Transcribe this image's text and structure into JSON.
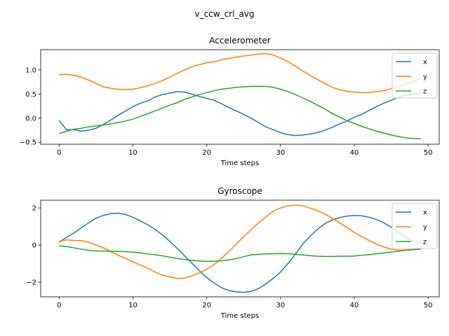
{
  "figure": {
    "suptitle": "v_ccw_crl_avg"
  },
  "chart_data": [
    {
      "type": "line",
      "title": "Accelerometer",
      "xlabel": "Time steps",
      "ylabel": "",
      "xlim": [
        -2.5,
        51.5
      ],
      "ylim": [
        -0.54,
        1.42
      ],
      "xticks": [
        0,
        10,
        20,
        30,
        40,
        50
      ],
      "yticks": [
        -0.5,
        0.0,
        0.5,
        1.0
      ],
      "ytick_labels": [
        "−0.5",
        "0.0",
        "0.5",
        "1.0"
      ],
      "legend_position": "upper right",
      "x": [
        0,
        1,
        2,
        3,
        4,
        5,
        6,
        7,
        8,
        9,
        10,
        11,
        12,
        13,
        14,
        15,
        16,
        17,
        18,
        19,
        20,
        21,
        22,
        23,
        24,
        25,
        26,
        27,
        28,
        29,
        30,
        31,
        32,
        33,
        34,
        35,
        36,
        37,
        38,
        39,
        40,
        41,
        42,
        43,
        44,
        45,
        46,
        47,
        48,
        49
      ],
      "series": [
        {
          "name": "x",
          "color": "#1f77b4",
          "values": [
            -0.05,
            -0.24,
            -0.24,
            -0.27,
            -0.25,
            -0.21,
            -0.13,
            -0.04,
            0.06,
            0.15,
            0.24,
            0.31,
            0.36,
            0.44,
            0.49,
            0.52,
            0.55,
            0.54,
            0.5,
            0.45,
            0.41,
            0.37,
            0.3,
            0.22,
            0.15,
            0.08,
            0.0,
            -0.09,
            -0.18,
            -0.24,
            -0.3,
            -0.34,
            -0.36,
            -0.35,
            -0.33,
            -0.3,
            -0.25,
            -0.19,
            -0.12,
            -0.06,
            0.02,
            0.08,
            0.16,
            0.24,
            0.31,
            0.37,
            0.44,
            0.48,
            0.5,
            0.52
          ]
        },
        {
          "name": "y",
          "color": "#ff7f0e",
          "values": [
            0.9,
            0.91,
            0.89,
            0.85,
            0.79,
            0.72,
            0.65,
            0.62,
            0.6,
            0.59,
            0.6,
            0.63,
            0.67,
            0.72,
            0.78,
            0.85,
            0.93,
            1.0,
            1.07,
            1.11,
            1.15,
            1.17,
            1.21,
            1.24,
            1.27,
            1.29,
            1.31,
            1.33,
            1.34,
            1.31,
            1.25,
            1.17,
            1.08,
            0.98,
            0.89,
            0.8,
            0.72,
            0.64,
            0.59,
            0.56,
            0.54,
            0.53,
            0.53,
            0.55,
            0.57,
            0.61,
            0.65,
            0.71,
            0.77,
            0.82
          ]
        },
        {
          "name": "z",
          "color": "#2ca02c",
          "values": [
            -0.32,
            -0.27,
            -0.23,
            -0.21,
            -0.18,
            -0.16,
            -0.14,
            -0.12,
            -0.09,
            -0.06,
            -0.02,
            0.04,
            0.09,
            0.15,
            0.21,
            0.27,
            0.32,
            0.39,
            0.44,
            0.49,
            0.53,
            0.57,
            0.6,
            0.62,
            0.64,
            0.65,
            0.66,
            0.66,
            0.66,
            0.64,
            0.6,
            0.55,
            0.49,
            0.42,
            0.35,
            0.27,
            0.19,
            0.1,
            0.02,
            -0.05,
            -0.11,
            -0.17,
            -0.22,
            -0.27,
            -0.31,
            -0.35,
            -0.38,
            -0.41,
            -0.42,
            -0.43
          ]
        }
      ]
    },
    {
      "type": "line",
      "title": "Gyroscope",
      "xlabel": "Time steps",
      "ylabel": "",
      "xlim": [
        -2.5,
        51.5
      ],
      "ylim": [
        -2.79,
        2.42
      ],
      "xticks": [
        0,
        10,
        20,
        30,
        40,
        50
      ],
      "yticks": [
        -2,
        0,
        2
      ],
      "ytick_labels": [
        "−2",
        "0",
        "2"
      ],
      "legend_position": "upper right",
      "x": [
        0,
        1,
        2,
        3,
        4,
        5,
        6,
        7,
        8,
        9,
        10,
        11,
        12,
        13,
        14,
        15,
        16,
        17,
        18,
        19,
        20,
        21,
        22,
        23,
        24,
        25,
        26,
        27,
        28,
        29,
        30,
        31,
        32,
        33,
        34,
        35,
        36,
        37,
        38,
        39,
        40,
        41,
        42,
        43,
        44,
        45,
        46,
        47,
        48,
        49
      ],
      "series": [
        {
          "name": "x",
          "color": "#1f77b4",
          "values": [
            0.15,
            0.42,
            0.65,
            0.93,
            1.2,
            1.45,
            1.6,
            1.7,
            1.72,
            1.65,
            1.5,
            1.3,
            1.1,
            0.85,
            0.55,
            0.2,
            -0.18,
            -0.58,
            -0.98,
            -1.38,
            -1.75,
            -2.05,
            -2.3,
            -2.45,
            -2.52,
            -2.55,
            -2.5,
            -2.35,
            -2.1,
            -1.8,
            -1.45,
            -1.0,
            -0.5,
            0.05,
            0.48,
            0.85,
            1.15,
            1.35,
            1.48,
            1.56,
            1.6,
            1.58,
            1.5,
            1.38,
            1.2,
            0.96,
            0.7,
            0.42,
            0.2,
            0.1
          ]
        },
        {
          "name": "y",
          "color": "#ff7f0e",
          "values": [
            0.2,
            0.28,
            0.25,
            0.24,
            0.15,
            0.0,
            -0.15,
            -0.35,
            -0.55,
            -0.72,
            -0.9,
            -1.08,
            -1.25,
            -1.45,
            -1.62,
            -1.72,
            -1.8,
            -1.78,
            -1.65,
            -1.5,
            -1.3,
            -1.05,
            -0.72,
            -0.35,
            0.05,
            0.45,
            0.82,
            1.18,
            1.52,
            1.82,
            2.0,
            2.12,
            2.15,
            2.12,
            2.0,
            1.85,
            1.68,
            1.45,
            1.2,
            0.95,
            0.68,
            0.45,
            0.25,
            0.05,
            -0.1,
            -0.22,
            -0.28,
            -0.26,
            -0.24,
            -0.23
          ]
        },
        {
          "name": "z",
          "color": "#2ca02c",
          "values": [
            -0.05,
            -0.08,
            -0.15,
            -0.22,
            -0.28,
            -0.32,
            -0.32,
            -0.33,
            -0.34,
            -0.36,
            -0.38,
            -0.42,
            -0.48,
            -0.52,
            -0.58,
            -0.65,
            -0.72,
            -0.78,
            -0.82,
            -0.86,
            -0.88,
            -0.87,
            -0.85,
            -0.8,
            -0.73,
            -0.63,
            -0.53,
            -0.5,
            -0.48,
            -0.47,
            -0.46,
            -0.47,
            -0.49,
            -0.53,
            -0.57,
            -0.6,
            -0.61,
            -0.62,
            -0.6,
            -0.6,
            -0.59,
            -0.55,
            -0.52,
            -0.47,
            -0.42,
            -0.38,
            -0.33,
            -0.28,
            -0.25,
            -0.22
          ]
        }
      ]
    }
  ]
}
